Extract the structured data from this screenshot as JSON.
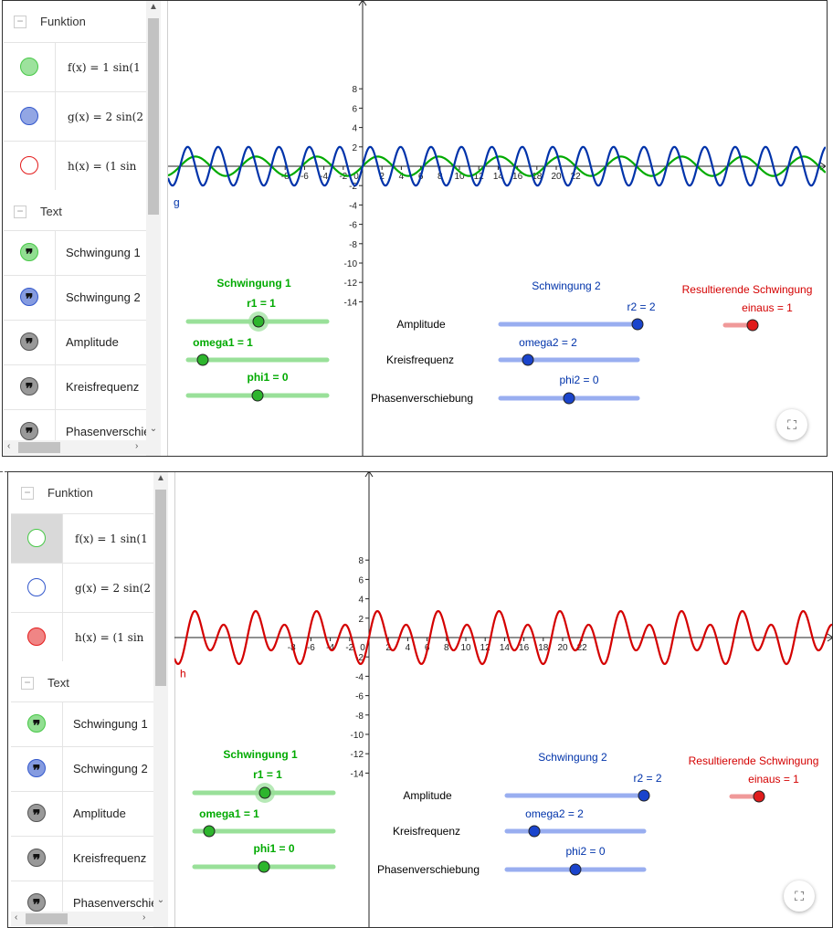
{
  "algebra": {
    "section_function": "Funktion",
    "section_text": "Text",
    "functions": [
      {
        "name": "f",
        "text": "f(x) = 1 sin(1",
        "color": "#47c847"
      },
      {
        "name": "g",
        "text": "g(x) = 2 sin(2",
        "color": "#3358cc"
      },
      {
        "name": "h",
        "text": "h(x) = (1 sin",
        "color": "#e31b1b"
      }
    ],
    "texts": [
      {
        "label": "Schwingung 1",
        "color": "#47c847"
      },
      {
        "label": "Schwingung 2",
        "color": "#3358cc"
      },
      {
        "label": "Amplitude",
        "color": "#555555"
      },
      {
        "label": "Kreisfrequenz",
        "color": "#555555"
      },
      {
        "label": "Phasenverschie",
        "color": "#555555"
      }
    ]
  },
  "graph": {
    "x_ticks": [
      "-8",
      "-6",
      "-4",
      "-2",
      "0",
      "2",
      "4",
      "6",
      "8",
      "10",
      "12",
      "14",
      "16",
      "18",
      "20",
      "22"
    ],
    "y_ticks": [
      "8",
      "6",
      "4",
      "2",
      "-2",
      "-4",
      "-6",
      "-8",
      "-10",
      "-12",
      "-14"
    ],
    "curve_label_top": "g",
    "curve_label_bottom": "h"
  },
  "controls": {
    "schwingung1": "Schwingung 1",
    "schwingung2": "Schwingung 2",
    "resultierende": "Resultierende Schwingung",
    "row_amplitude": "Amplitude",
    "row_kreisfrequenz": "Kreisfrequenz",
    "row_phase": "Phasenverschiebung",
    "r1": "r1 = 1",
    "omega1": "omega1 = 1",
    "phi1": "phi1 = 0",
    "r2": "r2 = 2",
    "omega2": "omega2 = 2",
    "phi2": "phi2 = 0",
    "einaus": "einaus = 1"
  },
  "colors": {
    "green": "#00aa00",
    "blue": "#0033aa",
    "red": "#d40000",
    "green_track": "#99e099",
    "blue_track": "#99aef0",
    "red_track": "#f09999"
  },
  "chart_data": [
    {
      "type": "line",
      "title": "",
      "xlim": [
        -10,
        24
      ],
      "ylim": [
        -15,
        8
      ],
      "grid": false,
      "series": [
        {
          "name": "f",
          "expr": "1 sin(1x)",
          "color": "#00aa00"
        },
        {
          "name": "g",
          "expr": "2 sin(2x)",
          "color": "#0033aa"
        }
      ]
    },
    {
      "type": "line",
      "title": "",
      "xlim": [
        -10,
        24
      ],
      "ylim": [
        -15,
        8
      ],
      "grid": false,
      "series": [
        {
          "name": "h",
          "expr": "1 sin(1x) + 2 sin(2x)",
          "color": "#d40000"
        }
      ]
    }
  ]
}
